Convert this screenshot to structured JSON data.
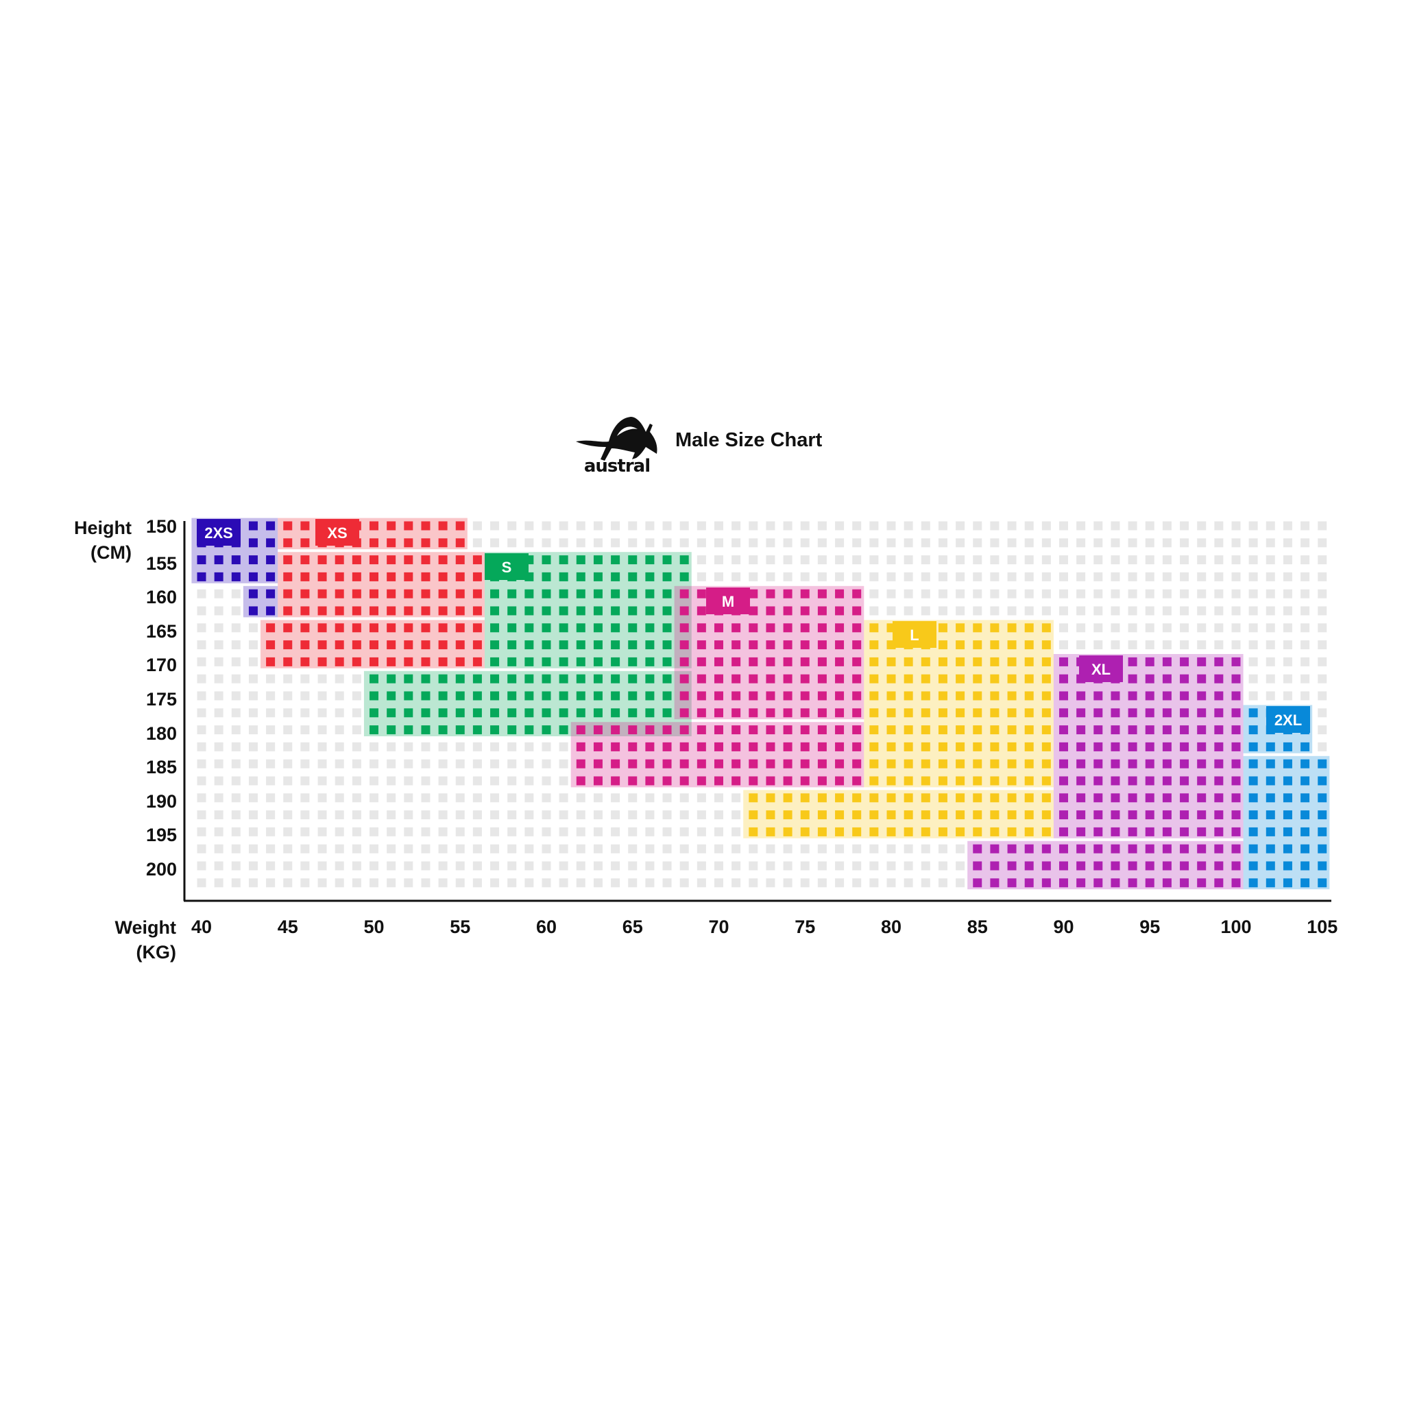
{
  "header": {
    "title": "Male Size Chart",
    "logo_text": "austral"
  },
  "chart_data": {
    "type": "heatmap",
    "title": "Male Size Chart",
    "xlabel": [
      "Weight",
      "(KG)"
    ],
    "ylabel": [
      "Height",
      "(CM)"
    ],
    "xlim": [
      40,
      105
    ],
    "ylim": [
      150,
      202.5
    ],
    "x_ticks": [
      "40",
      "45",
      "50",
      "55",
      "60",
      "65",
      "70",
      "75",
      "80",
      "85",
      "90",
      "95",
      "100",
      "105"
    ],
    "y_ticks": [
      "150",
      "155",
      "160",
      "165",
      "170",
      "175",
      "180",
      "185",
      "190",
      "195",
      "200"
    ],
    "x_step": 1,
    "y_step": 2.5,
    "empty_color": "#e7e7e7",
    "sizes": [
      {
        "label": "2XS",
        "color": "#2b0bb5",
        "regions": [
          {
            "weight": [
              40,
              44
            ],
            "height": [
              150,
              157.5
            ]
          },
          {
            "weight": [
              43,
              44
            ],
            "height": [
              160,
              162.5
            ]
          }
        ]
      },
      {
        "label": "XS",
        "color": "#ee2b36",
        "regions": [
          {
            "weight": [
              45,
              55
            ],
            "height": [
              150,
              152.5
            ]
          },
          {
            "weight": [
              45,
              56
            ],
            "height": [
              155,
              162.5
            ]
          },
          {
            "weight": [
              44,
              56
            ],
            "height": [
              165,
              170
            ]
          }
        ]
      },
      {
        "label": "S",
        "color": "#05a85a",
        "regions": [
          {
            "weight": [
              57,
              68
            ],
            "height": [
              155,
              170
            ]
          },
          {
            "weight": [
              50,
              68
            ],
            "height": [
              172.5,
              180
            ]
          }
        ]
      },
      {
        "label": "M",
        "color": "#d51d87",
        "regions": [
          {
            "weight": [
              68,
              78
            ],
            "height": [
              160,
              177.5
            ]
          },
          {
            "weight": [
              62,
              78
            ],
            "height": [
              180,
              187.5
            ]
          }
        ]
      },
      {
        "label": "L",
        "color": "#f8c91a",
        "regions": [
          {
            "weight": [
              79,
              89
            ],
            "height": [
              165,
              187.5
            ]
          },
          {
            "weight": [
              72,
              89
            ],
            "height": [
              190,
              195
            ]
          }
        ]
      },
      {
        "label": "XL",
        "color": "#ae20b1",
        "regions": [
          {
            "weight": [
              90,
              100
            ],
            "height": [
              170,
              195
            ]
          },
          {
            "weight": [
              85,
              100
            ],
            "height": [
              197.5,
              202.5
            ]
          }
        ]
      },
      {
        "label": "2XL",
        "color": "#0889d9",
        "regions": [
          {
            "weight": [
              101,
              104
            ],
            "height": [
              177.5,
              182.5
            ]
          },
          {
            "weight": [
              101,
              105
            ],
            "height": [
              185,
              202.5
            ]
          }
        ]
      }
    ]
  }
}
